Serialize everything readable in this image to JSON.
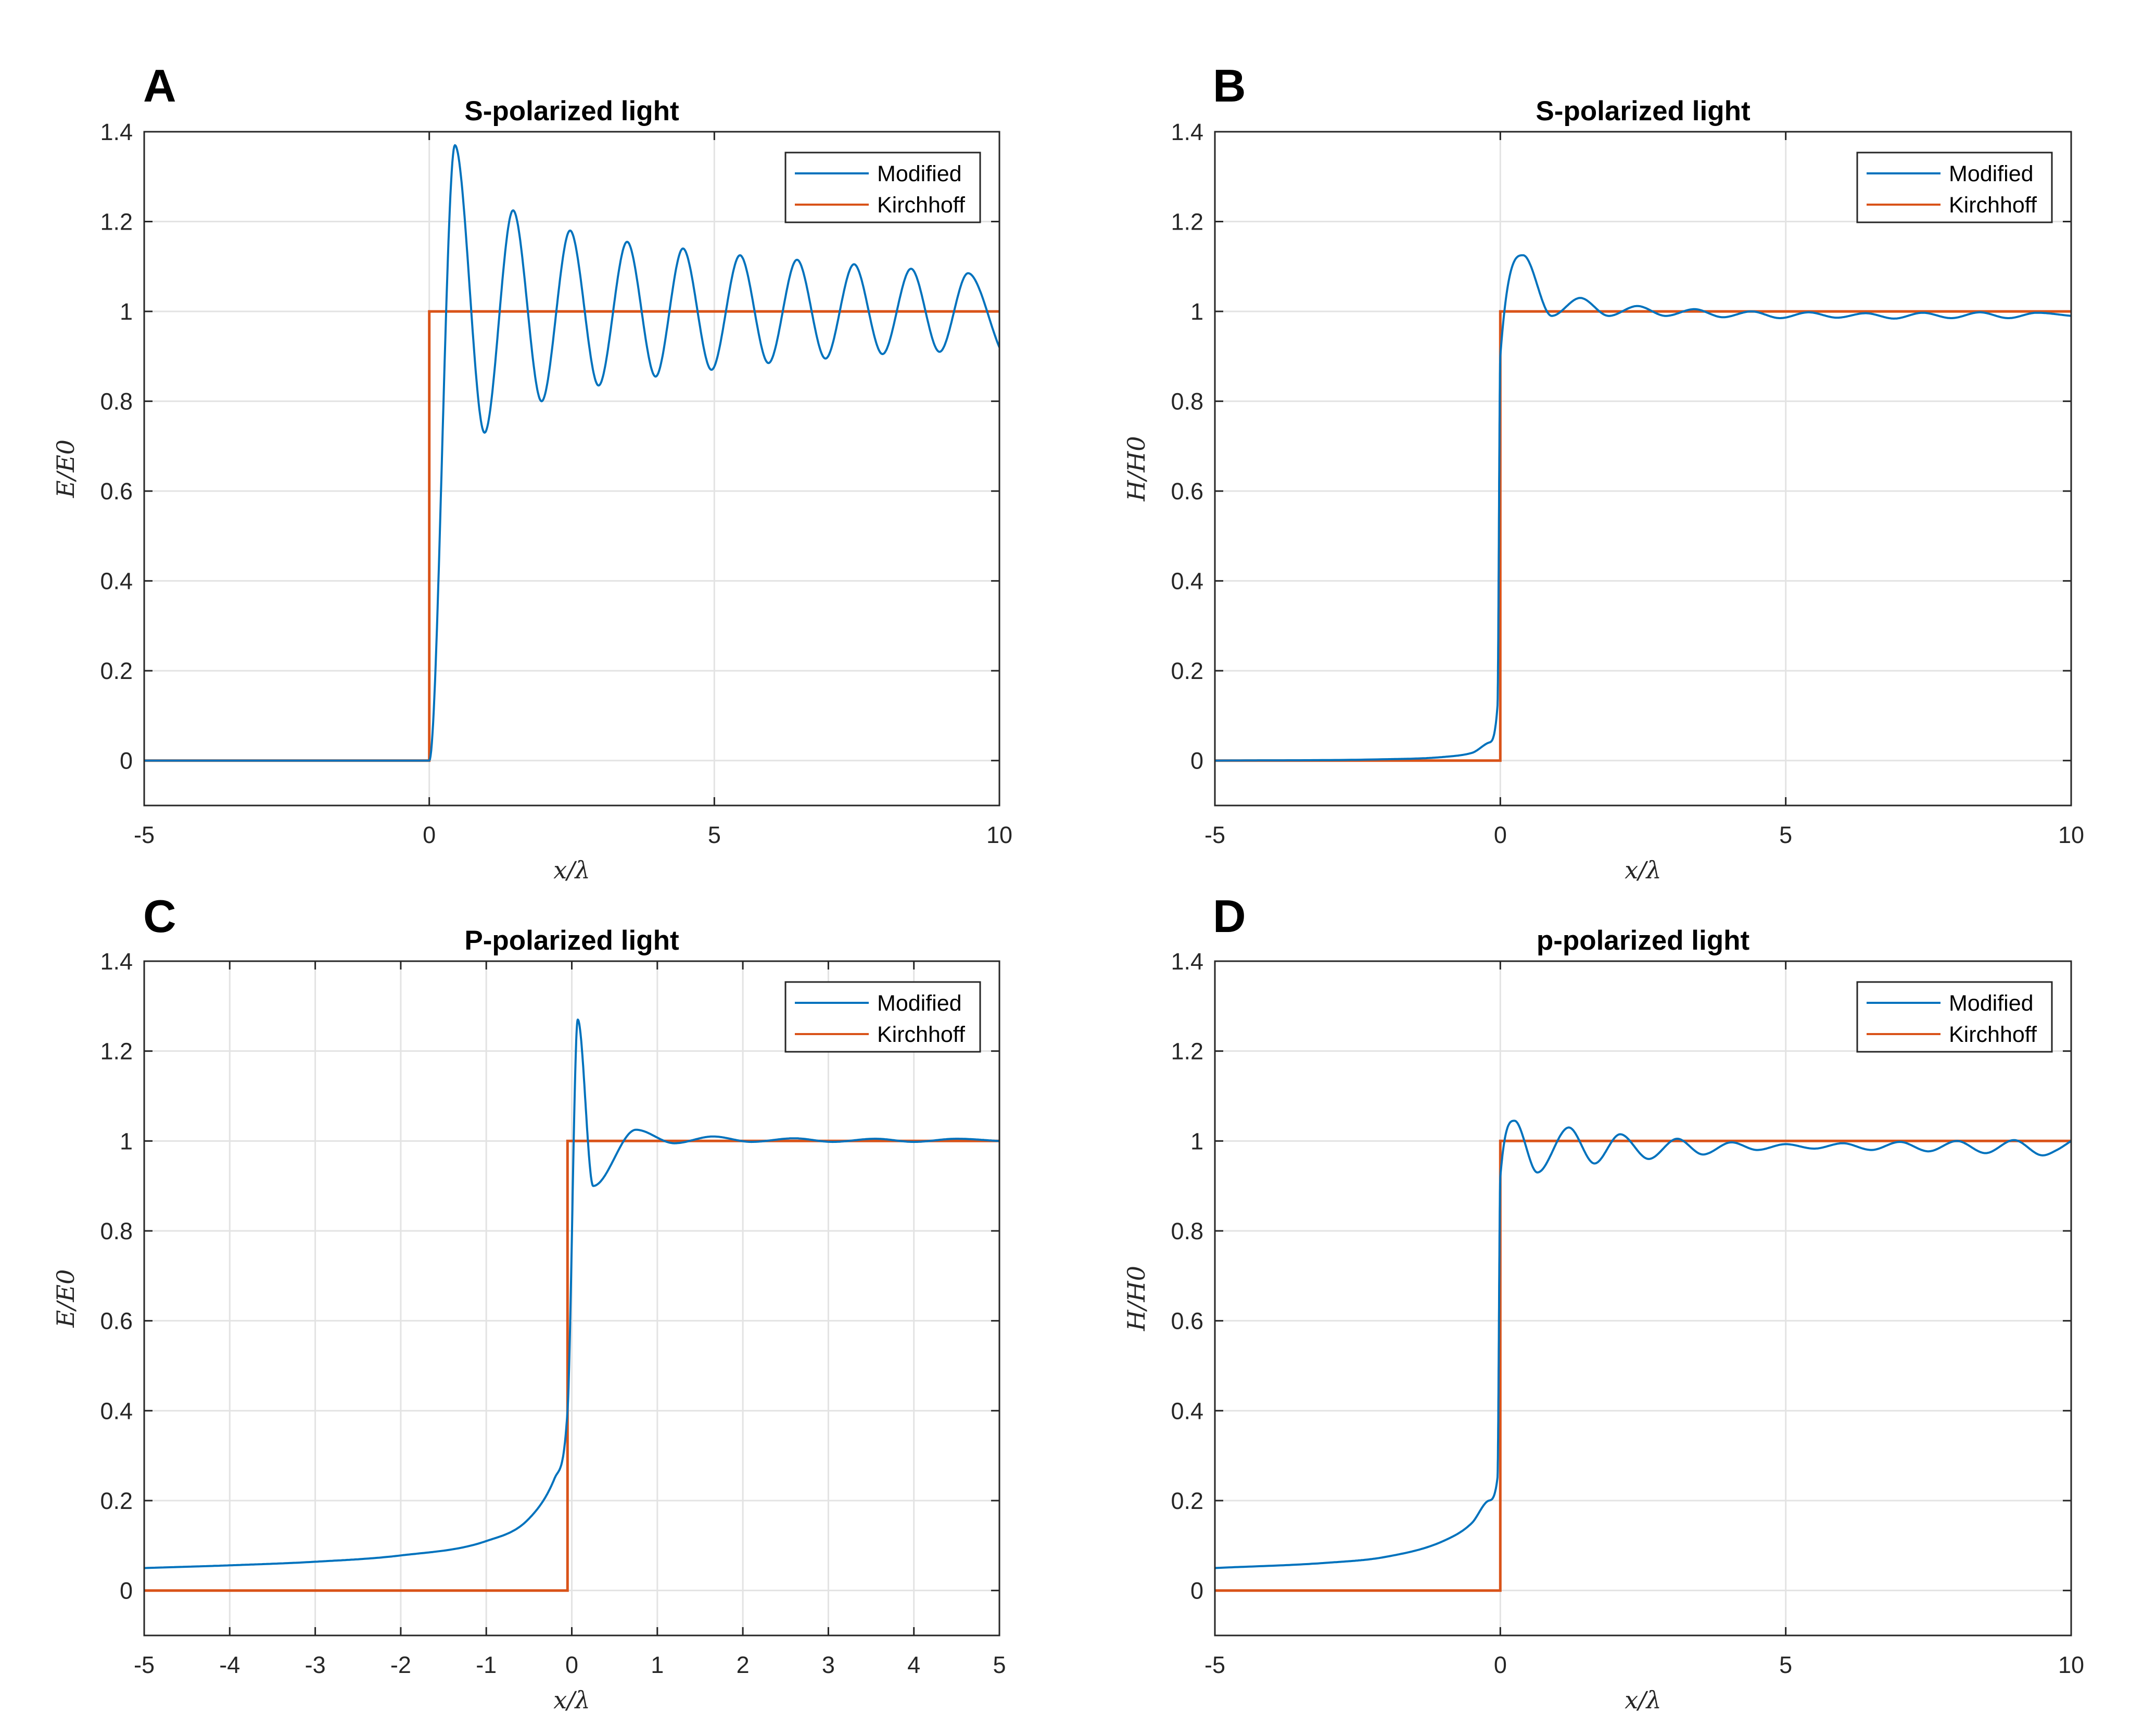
{
  "colors": {
    "modified": "#0072BD",
    "kirchhoff": "#D95319",
    "grid": "#e3e3e3",
    "axis": "#262626"
  },
  "chart_data": [
    {
      "panel_label": "A",
      "type": "line",
      "title": "S-polarized light",
      "xlabel": "x/λ",
      "ylabel": "E/E0",
      "xlim": [
        -5,
        10
      ],
      "ylim": [
        -0.1,
        1.4
      ],
      "xticks": [
        -5,
        0,
        5,
        10
      ],
      "yticks": [
        0,
        0.2,
        0.4,
        0.6,
        0.8,
        1,
        1.2,
        1.4
      ],
      "grid": true,
      "legend_position": "top-right",
      "series": [
        {
          "name": "Modified",
          "x": [
            -5,
            0,
            0.45,
            0.97,
            1.47,
            1.97,
            2.47,
            2.97,
            3.47,
            3.97,
            4.45,
            4.95,
            5.45,
            5.95,
            6.45,
            6.95,
            7.45,
            7.95,
            8.45,
            8.95,
            9.45,
            10
          ],
          "y": [
            0,
            0,
            1.37,
            0.73,
            1.225,
            0.8,
            1.18,
            0.835,
            1.155,
            0.855,
            1.14,
            0.87,
            1.125,
            0.885,
            1.115,
            0.895,
            1.105,
            0.905,
            1.095,
            0.91,
            1.085,
            0.92
          ]
        },
        {
          "name": "Kirchhoff",
          "x": [
            -5,
            0,
            0,
            10
          ],
          "y": [
            0,
            0,
            1,
            1
          ]
        }
      ]
    },
    {
      "panel_label": "B",
      "type": "line",
      "title": "S-polarized light",
      "xlabel": "x/λ",
      "ylabel": "H/H0",
      "xlim": [
        -5,
        10
      ],
      "ylim": [
        -0.1,
        1.4
      ],
      "xticks": [
        -5,
        0,
        5,
        10
      ],
      "yticks": [
        0,
        0.2,
        0.4,
        0.6,
        0.8,
        1,
        1.2,
        1.4
      ],
      "grid": true,
      "legend_position": "top-right",
      "series": [
        {
          "name": "Modified",
          "x": [
            -5,
            -2,
            -1,
            -0.5,
            -0.2,
            -0.05,
            0,
            0.4,
            0.9,
            1.4,
            1.9,
            2.4,
            2.9,
            3.4,
            3.9,
            4.4,
            4.9,
            5.4,
            5.9,
            6.4,
            6.9,
            7.4,
            7.9,
            8.4,
            8.9,
            9.4,
            10
          ],
          "y": [
            0,
            0.003,
            0.008,
            0.017,
            0.04,
            0.12,
            0.9,
            1.125,
            0.99,
            1.03,
            0.99,
            1.012,
            0.99,
            1.005,
            0.987,
            1.0,
            0.985,
            0.998,
            0.986,
            0.996,
            0.984,
            0.997,
            0.985,
            0.998,
            0.985,
            0.997,
            0.99
          ]
        },
        {
          "name": "Kirchhoff",
          "x": [
            -5,
            0,
            0,
            10
          ],
          "y": [
            0,
            0,
            1,
            1
          ]
        }
      ]
    },
    {
      "panel_label": "C",
      "type": "line",
      "title": "P-polarized light",
      "xlabel": "x/λ",
      "ylabel": "E/E0",
      "xlim": [
        -5,
        5
      ],
      "ylim": [
        -0.1,
        1.4
      ],
      "xticks": [
        -5,
        -4,
        -3,
        -2,
        -1,
        0,
        1,
        2,
        3,
        4,
        5
      ],
      "yticks": [
        0,
        0.2,
        0.4,
        0.6,
        0.8,
        1,
        1.2,
        1.4
      ],
      "grid": true,
      "legend_position": "top-right",
      "series": [
        {
          "name": "Modified",
          "x": [
            -5,
            -4,
            -3,
            -2,
            -1,
            -0.5,
            -0.2,
            -0.05,
            0.07,
            0.25,
            0.75,
            1.2,
            1.65,
            2.1,
            2.6,
            3.05,
            3.55,
            4.0,
            4.5,
            5
          ],
          "y": [
            0.05,
            0.056,
            0.064,
            0.078,
            0.11,
            0.16,
            0.25,
            0.4,
            1.27,
            0.9,
            1.025,
            0.995,
            1.01,
            0.998,
            1.006,
            0.998,
            1.005,
            0.998,
            1.005,
            1.0
          ]
        },
        {
          "name": "Kirchhoff",
          "x": [
            -5,
            -0.05,
            -0.05,
            5
          ],
          "y": [
            0,
            0,
            1,
            1
          ]
        }
      ]
    },
    {
      "panel_label": "D",
      "type": "line",
      "title": "p-polarized light",
      "xlabel": "x/λ",
      "ylabel": "H/H0",
      "xlim": [
        -5,
        10
      ],
      "ylim": [
        -0.1,
        1.4
      ],
      "xticks": [
        -5,
        0,
        5,
        10
      ],
      "yticks": [
        0,
        0.2,
        0.4,
        0.6,
        0.8,
        1,
        1.2,
        1.4
      ],
      "grid": true,
      "legend_position": "top-right",
      "series": [
        {
          "name": "Modified",
          "x": [
            -5,
            -3,
            -2,
            -1,
            -0.5,
            -0.2,
            -0.05,
            0,
            0.25,
            0.65,
            1.2,
            1.65,
            2.1,
            2.6,
            3.1,
            3.55,
            4.05,
            4.5,
            5.0,
            5.5,
            6.0,
            6.5,
            7.0,
            7.5,
            8.0,
            8.5,
            9.0,
            9.5,
            9.75,
            10
          ],
          "y": [
            0.05,
            0.062,
            0.075,
            0.11,
            0.15,
            0.2,
            0.25,
            0.92,
            1.045,
            0.93,
            1.03,
            0.95,
            1.015,
            0.96,
            1.005,
            0.97,
            0.997,
            0.98,
            0.993,
            0.983,
            0.995,
            0.98,
            0.998,
            0.977,
            1.0,
            0.973,
            1.002,
            0.968,
            0.98,
            1.0
          ]
        },
        {
          "name": "Kirchhoff",
          "x": [
            -5,
            0,
            0,
            10
          ],
          "y": [
            0,
            0,
            1,
            1
          ]
        }
      ]
    }
  ]
}
